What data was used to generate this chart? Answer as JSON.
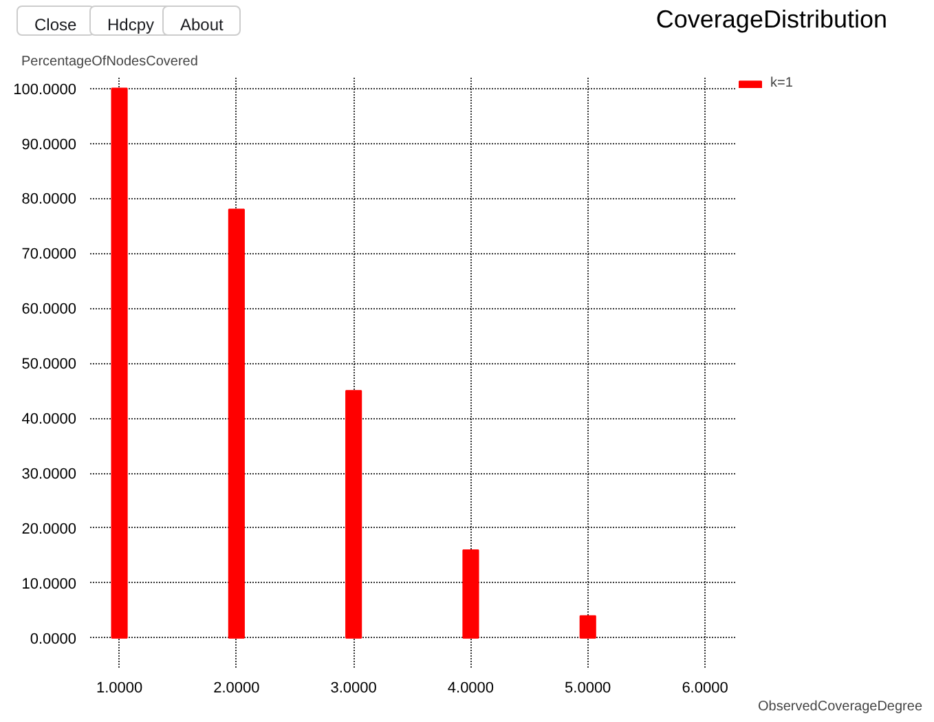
{
  "chart_data": {
    "type": "bar",
    "title": "CoverageDistribution",
    "xlabel": "ObservedCoverageDegree",
    "ylabel": "PercentageOfNodesCovered",
    "annotations": [
      "Close",
      "Hdcpy",
      "About"
    ],
    "x": [
      1,
      2,
      3,
      4,
      5
    ],
    "series": [
      {
        "name": "k=1",
        "color": "#ff0000",
        "values": [
          100,
          78,
          45,
          16,
          4
        ]
      }
    ],
    "xlim": [
      0.75,
      6.27
    ],
    "ylim": [
      -5.4,
      102.2
    ],
    "xticks": [
      {
        "value": 1,
        "label": "1.0000"
      },
      {
        "value": 2,
        "label": "2.0000"
      },
      {
        "value": 3,
        "label": "3.0000"
      },
      {
        "value": 4,
        "label": "4.0000"
      },
      {
        "value": 5,
        "label": "5.0000"
      },
      {
        "value": 6,
        "label": "6.0000"
      }
    ],
    "yticks": [
      {
        "value": 0,
        "label": "0.0000"
      },
      {
        "value": 10,
        "label": "10.0000"
      },
      {
        "value": 20,
        "label": "20.0000"
      },
      {
        "value": 30,
        "label": "30.0000"
      },
      {
        "value": 40,
        "label": "40.0000"
      },
      {
        "value": 50,
        "label": "50.0000"
      },
      {
        "value": 60,
        "label": "60.0000"
      },
      {
        "value": 70,
        "label": "70.0000"
      },
      {
        "value": 80,
        "label": "80.0000"
      },
      {
        "value": 90,
        "label": "90.0000"
      },
      {
        "value": 100,
        "label": "100.0000"
      }
    ],
    "grid": true,
    "legend": "top right"
  }
}
